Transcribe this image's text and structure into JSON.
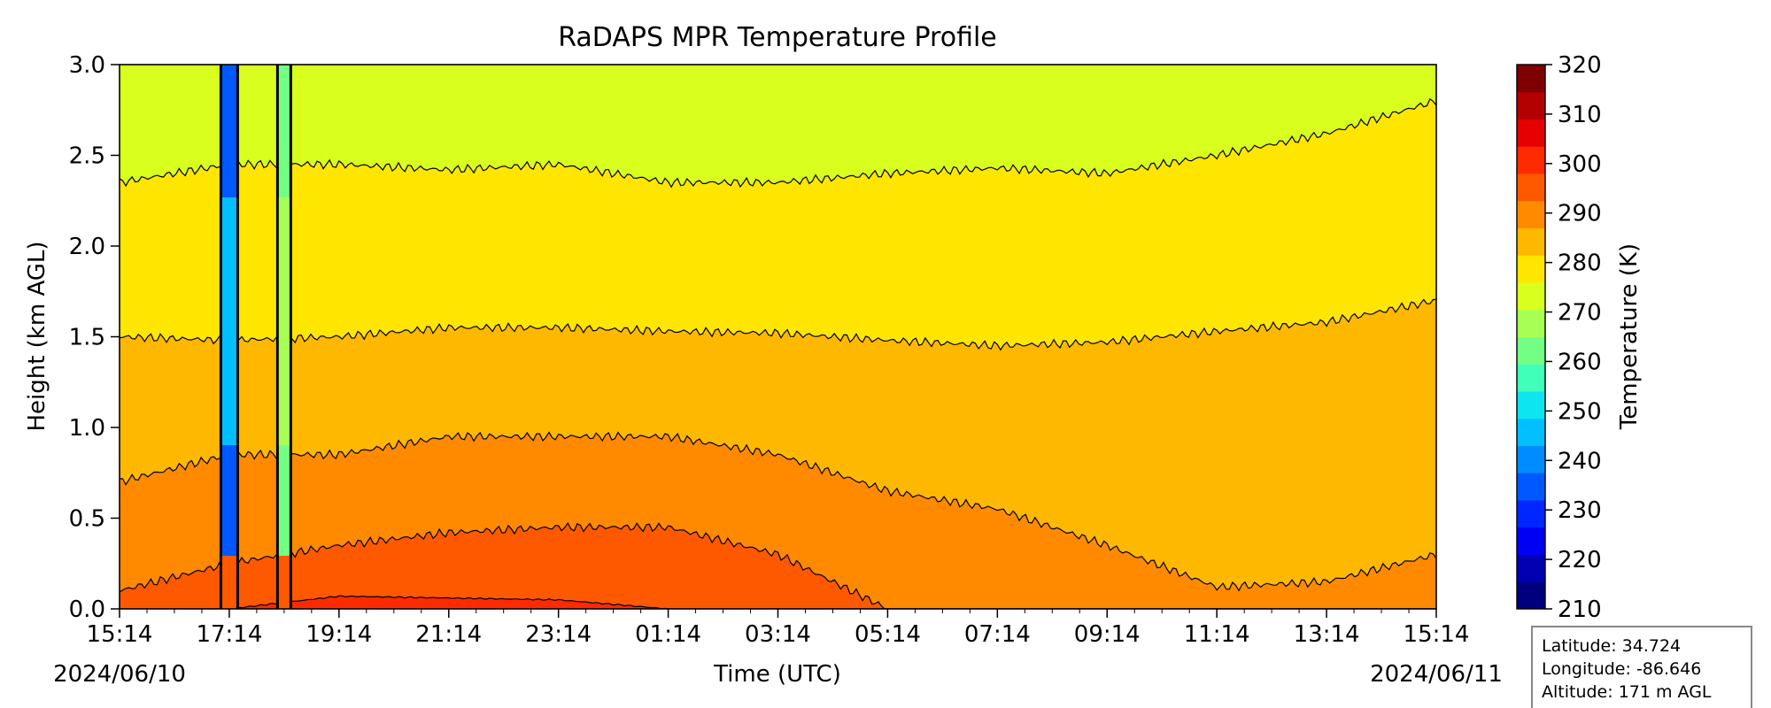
{
  "chart_data": {
    "type": "heatmap",
    "variant": "filled-contour",
    "title": "RaDAPS MPR Temperature Profile",
    "xlabel": "Time (UTC)",
    "ylabel": "Height (km AGL)",
    "date_start": "2024/06/10",
    "date_end": "2024/06/11",
    "x_ticks": [
      "15:14",
      "17:14",
      "19:14",
      "21:14",
      "23:14",
      "01:14",
      "03:14",
      "05:14",
      "07:14",
      "09:14",
      "11:14",
      "13:14",
      "15:14"
    ],
    "y_ticks": [
      "0.0",
      "0.5",
      "1.0",
      "1.5",
      "2.0",
      "2.5",
      "3.0"
    ],
    "ylim": [
      0,
      3
    ],
    "colorbar": {
      "label": "Temperature (K)",
      "range": [
        210,
        320
      ],
      "step": 5,
      "ticks": [
        "210",
        "220",
        "230",
        "240",
        "250",
        "260",
        "270",
        "280",
        "290",
        "300",
        "310",
        "320"
      ],
      "colors": [
        "#00007f",
        "#0000b3",
        "#0000f2",
        "#0026ff",
        "#0058ff",
        "#008cff",
        "#00bfff",
        "#0de5f0",
        "#3fffb9",
        "#73ff84",
        "#a6ff52",
        "#d9ff1e",
        "#ffe600",
        "#ffb800",
        "#ff8a00",
        "#ff5900",
        "#ff2a00",
        "#e60000",
        "#b30000",
        "#7f0000"
      ]
    },
    "isotherms": [
      {
        "level_K": 280,
        "height_km": [
          2.35,
          2.45,
          2.45,
          2.42,
          2.45,
          2.35,
          2.35,
          2.4,
          2.43,
          2.4,
          2.5,
          2.62,
          2.8
        ]
      },
      {
        "level_K": 285,
        "height_km": [
          1.5,
          1.48,
          1.5,
          1.55,
          1.55,
          1.53,
          1.52,
          1.48,
          1.45,
          1.47,
          1.53,
          1.58,
          1.7
        ]
      },
      {
        "level_K": 290,
        "height_km": [
          0.7,
          0.85,
          0.85,
          0.95,
          0.95,
          0.95,
          0.85,
          0.65,
          0.55,
          0.35,
          0.12,
          0.15,
          0.3
        ]
      },
      {
        "level_K": 295,
        "height_km": [
          0.1,
          0.25,
          0.35,
          0.42,
          0.45,
          0.45,
          0.3,
          0.0,
          0.0,
          0.0,
          0.0,
          0.0,
          0.0
        ]
      },
      {
        "level_K": 300,
        "height_km": [
          0.0,
          0.0,
          0.07,
          0.06,
          0.05,
          0.0,
          0.0,
          0.0,
          0.0,
          0.0,
          0.0,
          0.0,
          0.0
        ]
      }
    ],
    "cold_anomalies": [
      {
        "time": "17:14",
        "min_temp_K": 240
      },
      {
        "time": "17:44",
        "min_temp_K": 265
      }
    ]
  },
  "info_box": {
    "latitude": "Latitude: 34.724",
    "longitude": "Longitude: -86.646",
    "altitude": "Altitude: 171 m AGL"
  }
}
